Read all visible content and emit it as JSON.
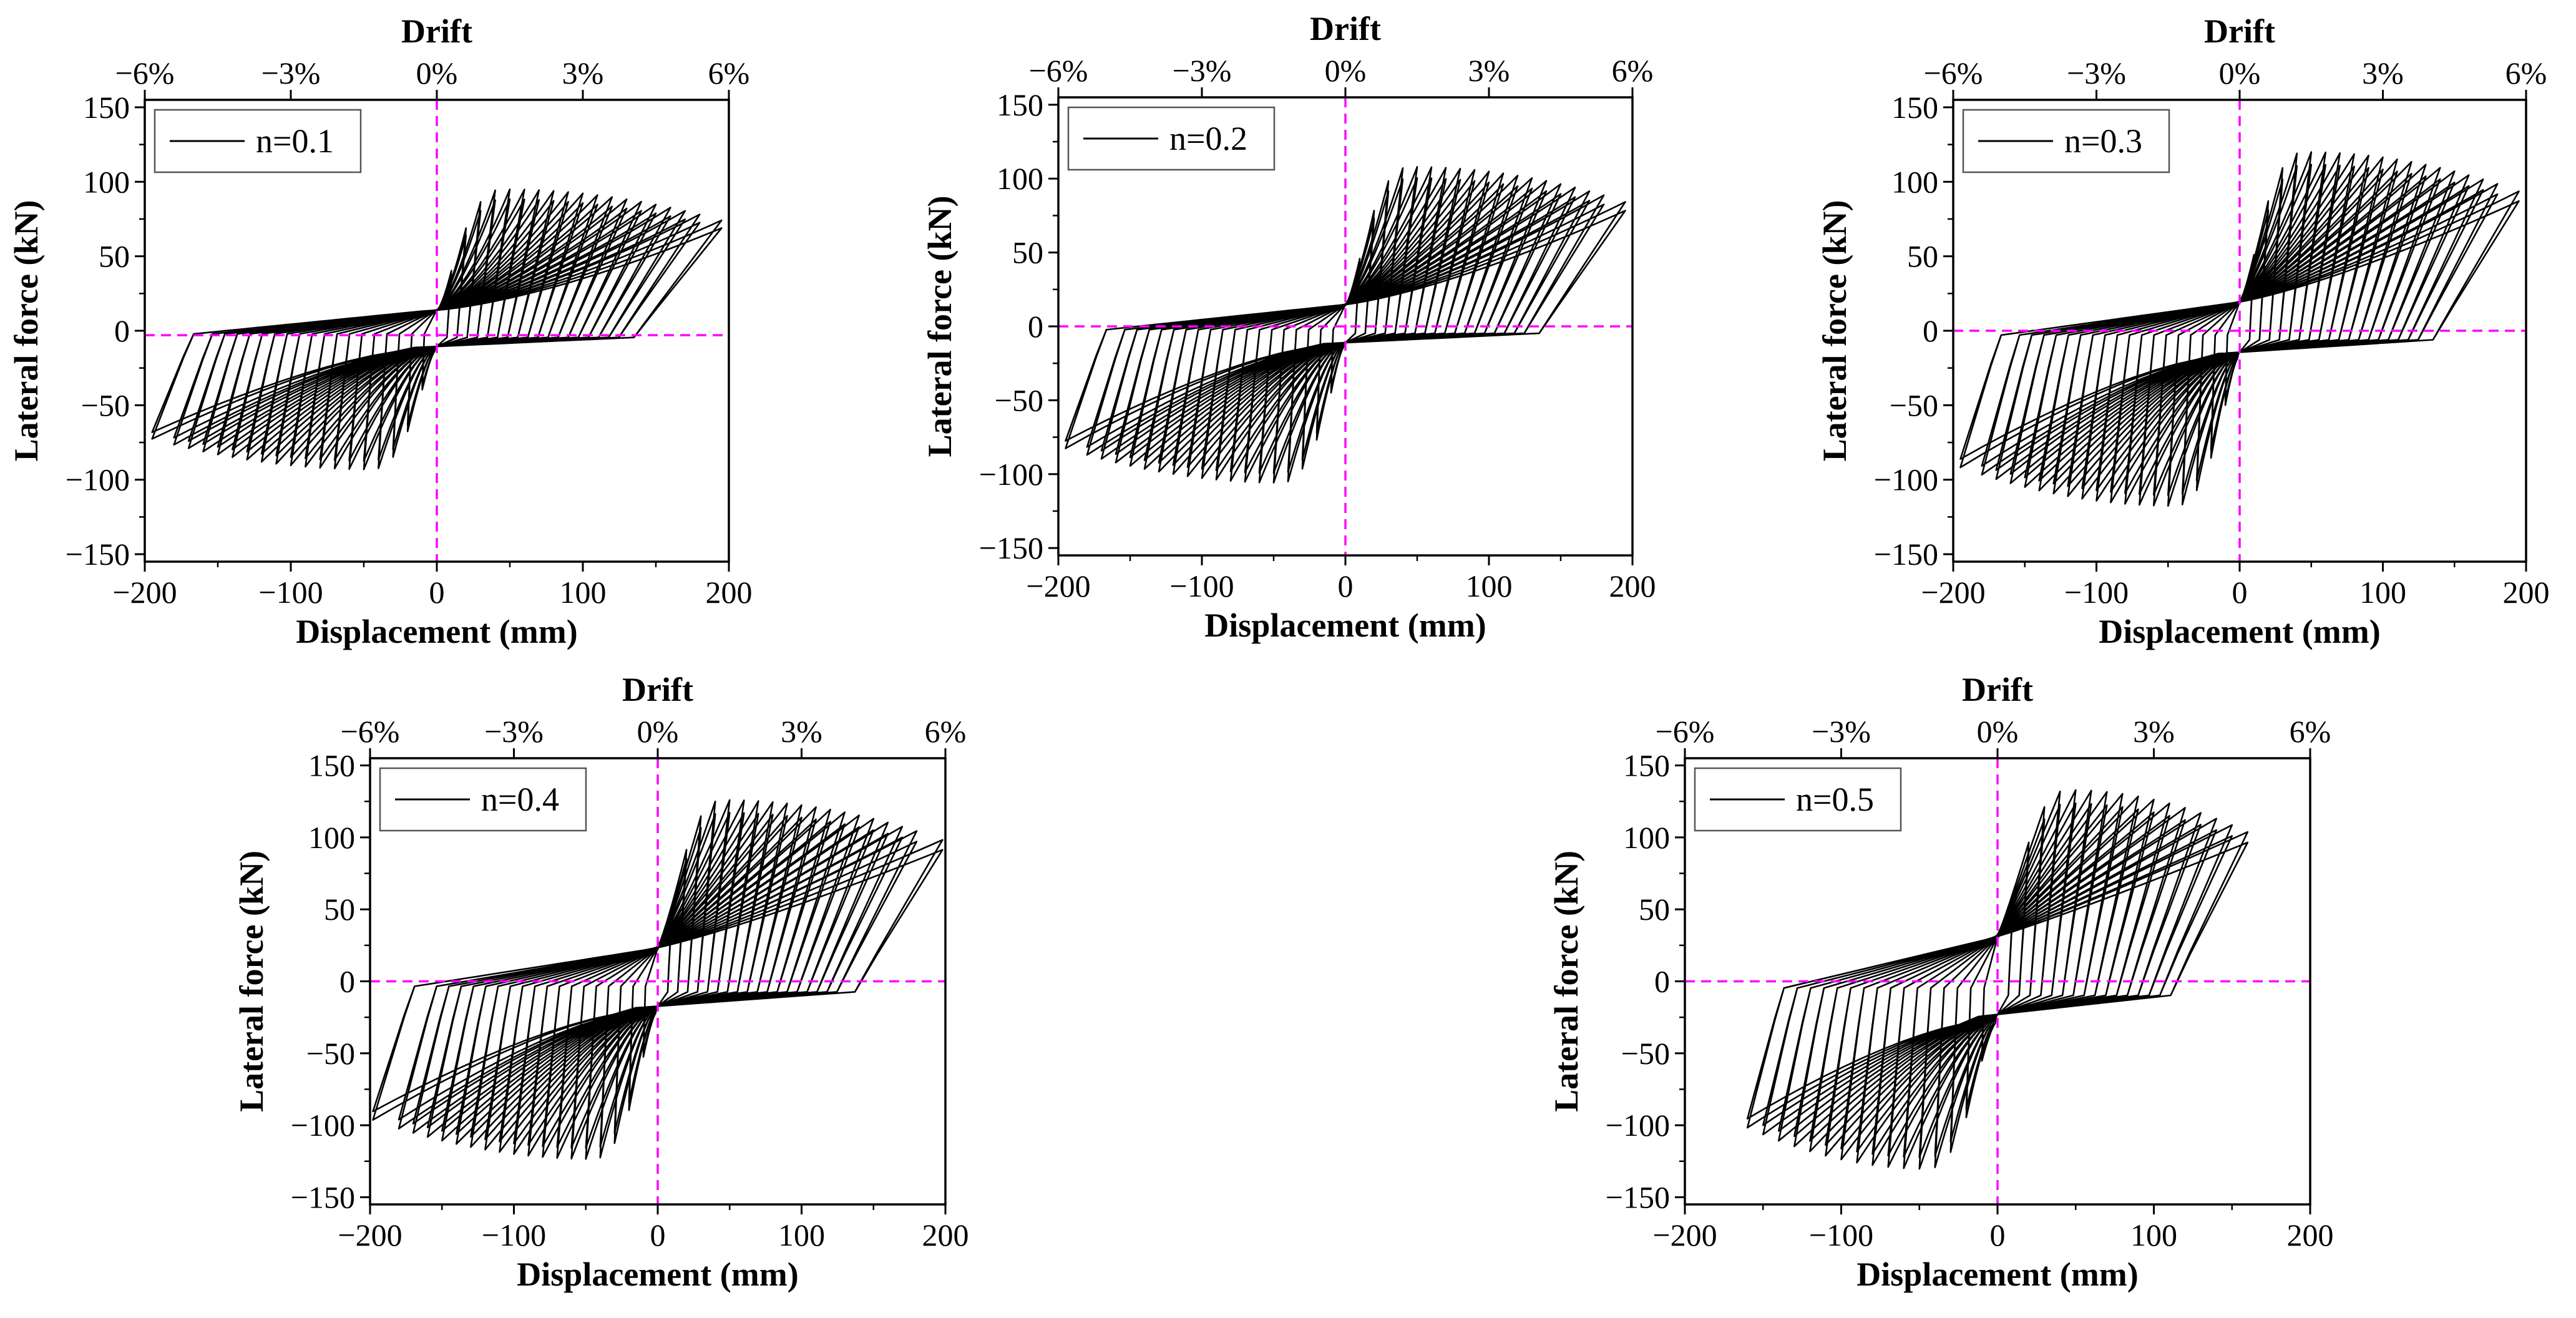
{
  "figure_description_hidden": false,
  "colors": {
    "curve": "#000000",
    "reference_line": "#ff00ff",
    "frame": "#000000",
    "background": "#ffffff"
  },
  "chart_data": [
    {
      "type": "line",
      "panel": "n=0.1",
      "legend": "n=0.1",
      "xlabel": "Displacement (mm)",
      "ylabel": "Lateral force (kN)",
      "top_label": "Drift",
      "xlim": [
        -200,
        200
      ],
      "ylim": [
        -155,
        155
      ],
      "xticks": [
        -200,
        -100,
        0,
        100,
        200
      ],
      "xtick_labels": [
        "−200",
        "−100",
        "0",
        "100",
        "200"
      ],
      "yticks": [
        -150,
        -100,
        -50,
        0,
        50,
        100,
        150
      ],
      "ytick_labels": [
        "−150",
        "−100",
        "−50",
        "0",
        "50",
        "100",
        "150"
      ],
      "drift_ticks": [
        -6,
        -3,
        0,
        3,
        6
      ],
      "drift_tick_labels": [
        "−6%",
        "−3%",
        "0%",
        "3%",
        "6%"
      ],
      "peak_force_kN": 95,
      "pinch_force_kN": 22,
      "max_displacement_mm": 195,
      "cycle_amplitudes_mm": [
        10,
        20,
        30,
        40,
        50,
        60,
        70,
        80,
        90,
        100,
        110,
        120,
        130,
        140,
        150,
        160,
        170,
        180,
        195
      ],
      "reference_lines": {
        "x": 0,
        "y": -3
      }
    },
    {
      "type": "line",
      "panel": "n=0.2",
      "legend": "n=0.2",
      "xlabel": "Displacement (mm)",
      "ylabel": "Lateral force (kN)",
      "top_label": "Drift",
      "xlim": [
        -200,
        200
      ],
      "ylim": [
        -155,
        155
      ],
      "xticks": [
        -200,
        -100,
        0,
        100,
        200
      ],
      "xtick_labels": [
        "−200",
        "−100",
        "0",
        "100",
        "200"
      ],
      "yticks": [
        -150,
        -100,
        -50,
        0,
        50,
        100,
        150
      ],
      "ytick_labels": [
        "−150",
        "−100",
        "−50",
        "0",
        "50",
        "100",
        "150"
      ],
      "drift_ticks": [
        -6,
        -3,
        0,
        3,
        6
      ],
      "drift_tick_labels": [
        "−6%",
        "−3%",
        "0%",
        "3%",
        "6%"
      ],
      "peak_force_kN": 108,
      "pinch_force_kN": 23,
      "max_displacement_mm": 195,
      "cycle_amplitudes_mm": [
        10,
        20,
        30,
        40,
        50,
        60,
        70,
        80,
        90,
        100,
        110,
        120,
        130,
        140,
        150,
        160,
        170,
        180,
        195
      ],
      "reference_lines": {
        "x": 0,
        "y": 0
      }
    },
    {
      "type": "line",
      "panel": "n=0.3",
      "legend": "n=0.3",
      "xlabel": "Displacement (mm)",
      "ylabel": "Lateral force (kN)",
      "top_label": "Drift",
      "xlim": [
        -200,
        200
      ],
      "ylim": [
        -155,
        155
      ],
      "xticks": [
        -200,
        -100,
        0,
        100,
        200
      ],
      "xtick_labels": [
        "−200",
        "−100",
        "0",
        "100",
        "200"
      ],
      "yticks": [
        -150,
        -100,
        -50,
        0,
        50,
        100,
        150
      ],
      "ytick_labels": [
        "−150",
        "−100",
        "−50",
        "0",
        "50",
        "100",
        "150"
      ],
      "drift_ticks": [
        -6,
        -3,
        0,
        3,
        6
      ],
      "drift_tick_labels": [
        "−6%",
        "−3%",
        "0%",
        "3%",
        "6%"
      ],
      "peak_force_kN": 120,
      "pinch_force_kN": 30,
      "max_displacement_mm": 195,
      "cycle_amplitudes_mm": [
        10,
        20,
        30,
        40,
        50,
        60,
        70,
        80,
        90,
        100,
        110,
        120,
        130,
        140,
        150,
        160,
        170,
        180,
        195
      ],
      "reference_lines": {
        "x": 0,
        "y": 0
      }
    },
    {
      "type": "line",
      "panel": "n=0.4",
      "legend": "n=0.4",
      "xlabel": "Displacement (mm)",
      "ylabel": "Lateral force (kN)",
      "top_label": "Drift",
      "xlim": [
        -200,
        200
      ],
      "ylim": [
        -155,
        155
      ],
      "xticks": [
        -200,
        -100,
        0,
        100,
        200
      ],
      "xtick_labels": [
        "−200",
        "−100",
        "0",
        "100",
        "200"
      ],
      "yticks": [
        -150,
        -100,
        -50,
        0,
        50,
        100,
        150
      ],
      "ytick_labels": [
        "−150",
        "−100",
        "−50",
        "0",
        "50",
        "100",
        "150"
      ],
      "drift_ticks": [
        -6,
        -3,
        0,
        3,
        6
      ],
      "drift_tick_labels": [
        "−6%",
        "−3%",
        "0%",
        "3%",
        "6%"
      ],
      "peak_force_kN": 126,
      "pinch_force_kN": 36,
      "max_displacement_mm": 198,
      "cycle_amplitudes_mm": [
        10,
        20,
        30,
        40,
        50,
        60,
        70,
        80,
        90,
        100,
        110,
        120,
        130,
        140,
        150,
        160,
        170,
        180,
        198
      ],
      "reference_lines": {
        "x": 0,
        "y": 0
      }
    },
    {
      "type": "line",
      "panel": "n=0.5",
      "legend": "n=0.5",
      "xlabel": "Displacement (mm)",
      "ylabel": "Lateral force (kN)",
      "top_label": "Drift",
      "xlim": [
        -200,
        200
      ],
      "ylim": [
        -155,
        155
      ],
      "xticks": [
        -200,
        -100,
        0,
        100,
        200
      ],
      "xtick_labels": [
        "−200",
        "−100",
        "0",
        "100",
        "200"
      ],
      "yticks": [
        -150,
        -100,
        -50,
        0,
        50,
        100,
        150
      ],
      "ytick_labels": [
        "−150",
        "−100",
        "−50",
        "0",
        "50",
        "100",
        "150"
      ],
      "drift_ticks": [
        -6,
        -3,
        0,
        3,
        6
      ],
      "drift_tick_labels": [
        "−6%",
        "−3%",
        "0%",
        "3%",
        "6%"
      ],
      "peak_force_kN": 133,
      "pinch_force_kN": 48,
      "max_displacement_mm": 160,
      "cycle_amplitudes_mm": [
        10,
        20,
        30,
        40,
        50,
        60,
        70,
        80,
        90,
        100,
        110,
        120,
        130,
        140,
        150,
        160
      ],
      "reference_lines": {
        "x": 0,
        "y": 0
      }
    }
  ]
}
